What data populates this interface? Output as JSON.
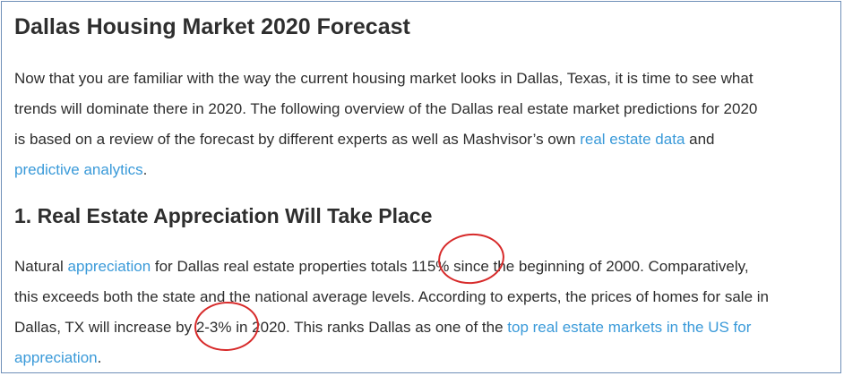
{
  "article": {
    "title": "Dallas Housing Market 2020 Forecast",
    "intro": {
      "l1": "Now that you are familiar with the way the current housing market looks in Dallas, Texas, it is time to see what",
      "l2": "trends will dominate there in 2020. The following overview of the Dallas real estate market predictions for 2020",
      "l3_text": "is based on a review of the forecast by different experts as well as Mashvisor’s own ",
      "l3_link": "real estate data",
      "l3_tail": " and",
      "l4_link": "predictive analytics",
      "l4_tail": "."
    },
    "section1": {
      "heading": "1. Real Estate Appreciation Will Take Place",
      "l1_pre": "Natural ",
      "l1_link": "appreciation",
      "l1_text": " for Dallas real estate properties totals 115% since the beginning of 2000. Comparatively,",
      "l2": "this exceeds both the state and the national average levels. According to experts, the prices of homes for sale in",
      "l3_text": "Dallas, TX will increase by 2-3% in 2020. This ranks Dallas as one of the ",
      "l3_link": "top real estate markets in the US for",
      "l4_link": "appreciation",
      "l4_tail": "."
    }
  },
  "annotations": {
    "color": "#d72a2a"
  }
}
